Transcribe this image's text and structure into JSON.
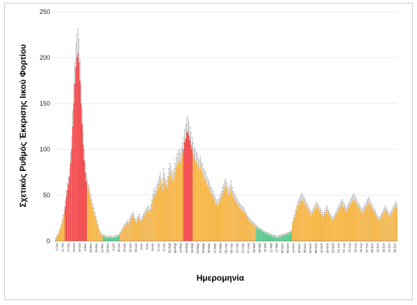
{
  "colors": {
    "orange": "#F5B240",
    "red": "#EF4548",
    "green": "#4CC987",
    "error": "#8a8a8a"
  },
  "chart_data": {
    "type": "bar",
    "title": "",
    "ylabel": "Σχετικός Ρυθμός Έκκρισης Ιικού Φορτίου",
    "xlabel": "Ημερομηνία",
    "ylim": [
      0,
      250
    ],
    "yticks": [
      0,
      50,
      100,
      150,
      200,
      250
    ],
    "grid": true,
    "xticklabels": [
      "5-Oct",
      "11-Oct",
      "17-Oct",
      "23-Oct",
      "29-Oct",
      "4-Nov",
      "10-Nov",
      "16-Nov",
      "22-Nov",
      "28-Nov",
      "4-Δεκ",
      "10-Δεκ",
      "16-Δεκ",
      "22-Δεκ",
      "28-Δεκ",
      "3-Ιαν",
      "9-Ιαν",
      "15-Ιαν",
      "21-Ιαν",
      "27-Ιαν",
      "02-Φεβ",
      "08-Φεβ",
      "14-Φεβ",
      "20-Φεβ",
      "26-Φεβ",
      "04-Μαρ",
      "10-Μαρ",
      "16-Μαρ",
      "22-Μαρ",
      "28-Μαρ",
      "03-Απρ",
      "09-Απρ",
      "15-Απρ",
      "21-Απρ",
      "27-Απρ",
      "03-Μαΐ",
      "09-Μαΐ",
      "15-Μαΐ",
      "21-Μαΐ",
      "27-Μαΐ",
      "02-Ιουν",
      "08-Ιουν",
      "14-Ιουν",
      "20-Ιουν",
      "26-Ιουν",
      "02-Ιουλ",
      "08-Ιουλ",
      "14-Ιουλ",
      "20-Ιουλ",
      "26-Ιουλ",
      "01-Αυγ",
      "07-Αυγ",
      "13-Αυγ",
      "19-Αυγ",
      "25-Αυγ",
      "31-Αυγ",
      "06-Σεπ",
      "12-Σεπ",
      "18-Σεπ",
      "24-Σεπ",
      "30-Σεπ"
    ],
    "segments": [
      {
        "color": "orange",
        "values": [
          0,
          2,
          4,
          6,
          9,
          12,
          16,
          20,
          25,
          30
        ]
      },
      {
        "color": "red",
        "values": [
          38,
          48,
          56,
          62,
          70,
          85,
          100,
          125,
          150,
          172,
          190,
          200,
          205,
          195,
          175,
          150,
          128,
          105,
          88,
          75,
          65
        ]
      },
      {
        "color": "orange",
        "values": [
          60,
          55,
          50,
          45,
          40,
          36,
          32,
          28,
          24,
          20,
          16,
          12,
          9,
          7,
          6
        ]
      },
      {
        "color": "green",
        "values": [
          5,
          5,
          4,
          4,
          4,
          3,
          4,
          4,
          3,
          3,
          4,
          4,
          4,
          5,
          5,
          6
        ]
      },
      {
        "color": "orange",
        "values": [
          8,
          10,
          12,
          14,
          16,
          17,
          18,
          20,
          18,
          22,
          24,
          26,
          28,
          25,
          22,
          20,
          22,
          24,
          26,
          22,
          20,
          24,
          26,
          28,
          30,
          32,
          34,
          33,
          30,
          35,
          40,
          45,
          50,
          48,
          52,
          55,
          58,
          62,
          66,
          60,
          55,
          70,
          65,
          60,
          58,
          62,
          70,
          75,
          72,
          68,
          66,
          70,
          75,
          80,
          84,
          86,
          88,
          85,
          90,
          95
        ]
      },
      {
        "color": "red",
        "values": [
          100,
          108,
          112,
          118,
          120,
          115,
          110,
          105,
          100
        ]
      },
      {
        "color": "orange",
        "values": [
          95,
          90,
          88,
          86,
          84,
          80,
          78,
          82,
          76,
          74,
          70,
          68,
          66,
          62,
          60,
          58,
          55,
          52,
          50,
          48,
          45,
          42,
          40,
          38,
          40,
          42,
          45,
          48,
          52,
          55,
          58,
          60,
          56,
          52,
          50,
          54,
          58,
          52,
          48,
          46,
          44,
          42,
          40,
          38,
          36,
          35,
          34,
          33,
          32,
          30,
          28,
          26,
          24,
          22,
          21,
          20,
          19,
          18,
          17,
          16
        ]
      },
      {
        "color": "green",
        "values": [
          15,
          14,
          13,
          12,
          12,
          11,
          10,
          9,
          9,
          8,
          8,
          7,
          7,
          6,
          6,
          5,
          5,
          5,
          4,
          4,
          4,
          4,
          5,
          5,
          5,
          6,
          6,
          6,
          7,
          7,
          8,
          8,
          9,
          10
        ]
      },
      {
        "color": "orange",
        "values": [
          18,
          22,
          26,
          30,
          34,
          38,
          40,
          42,
          44,
          46,
          44,
          42,
          40,
          38,
          36,
          34,
          32,
          30,
          28,
          30,
          32,
          34,
          36,
          38,
          36,
          34,
          32,
          30,
          28,
          26,
          28,
          30,
          32,
          34,
          30,
          28,
          26,
          24,
          22,
          24,
          26,
          28,
          30,
          32,
          34,
          36,
          38,
          40,
          38,
          36,
          34,
          32,
          34,
          36,
          38,
          40,
          42,
          44,
          46,
          44,
          42,
          40,
          38,
          36,
          34,
          32,
          30,
          32,
          34,
          36,
          38,
          40,
          42,
          40,
          38,
          36,
          34,
          32,
          30,
          28,
          26,
          24,
          22,
          24,
          26,
          28,
          30,
          32,
          34,
          32,
          30,
          28,
          26,
          28,
          30,
          32,
          34,
          36,
          38,
          36
        ]
      }
    ]
  }
}
